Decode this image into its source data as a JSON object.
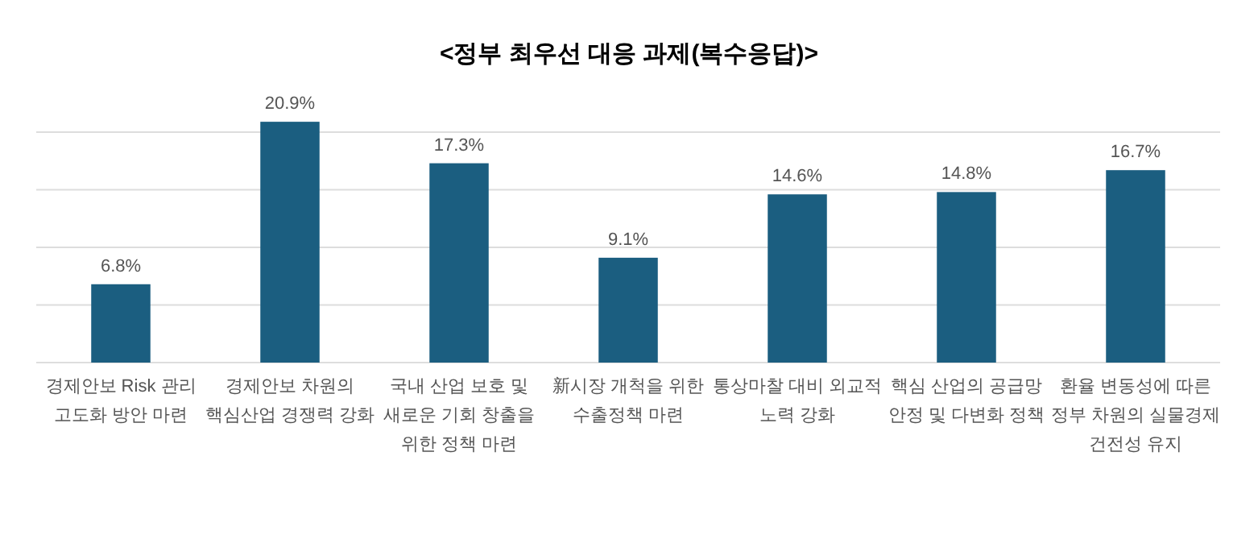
{
  "chart_data": {
    "type": "bar",
    "title": "<정부  최우선  대응  과제(복수응답)>",
    "categories": [
      "경제안보 Risk 관리\n고도화 방안 마련",
      "경제안보 차원의\n핵심산업 경쟁력 강화",
      "국내 산업 보호 및\n새로운 기회 창출을\n위한 정책 마련",
      "新시장 개척을 위한\n수출정책 마련",
      "통상마찰 대비 외교적\n노력 강화",
      "핵심 산업의 공급망\n안정 및 다변화 정책",
      "환율 변동성에 따른\n정부 차원의 실물경제\n건전성 유지"
    ],
    "values": [
      6.8,
      20.9,
      17.3,
      9.1,
      14.6,
      14.8,
      16.7
    ],
    "value_labels": [
      "6.8%",
      "20.9%",
      "17.3%",
      "9.1%",
      "14.6%",
      "14.8%",
      "16.7%"
    ],
    "color": "#1b5e80",
    "yticks": [
      {
        "value": 0,
        "label": null
      },
      {
        "value": 5,
        "label": null
      },
      {
        "value": 10,
        "label": null
      },
      {
        "value": 15,
        "label": null
      },
      {
        "value": 20,
        "label": null
      }
    ],
    "grid": "y",
    "tick_labels": "x"
  }
}
